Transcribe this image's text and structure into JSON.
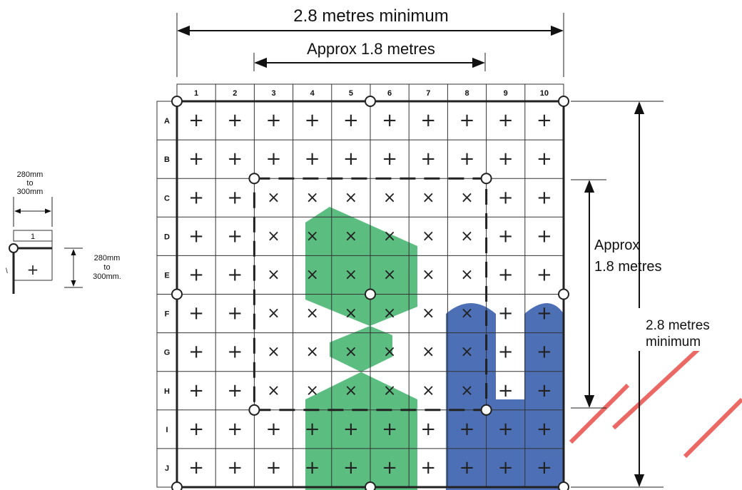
{
  "dimensions": {
    "top_outer": "2.8 metres minimum",
    "top_inner": "Approx 1.8 metres",
    "right_inner_line1": "Approx",
    "right_inner_line2": "1.8 metres",
    "right_outer_line1": "2.8 metres",
    "right_outer_line2": "minimum"
  },
  "inset": {
    "width_line1": "280mm",
    "width_line2": "to",
    "width_line3": "300mm",
    "height_line1": "280mm",
    "height_line2": "to",
    "height_line3": "300mm.",
    "column_label": "1",
    "cell_mark": "+",
    "row_mark": "A"
  },
  "grid": {
    "columns": [
      "1",
      "2",
      "3",
      "4",
      "5",
      "6",
      "7",
      "8",
      "9",
      "10"
    ],
    "rows": [
      "A",
      "B",
      "C",
      "D",
      "E",
      "F",
      "G",
      "H",
      "I",
      "J"
    ],
    "marks": [
      [
        "+",
        "+",
        "+",
        "+",
        "+",
        "+",
        "+",
        "+",
        "+",
        "+"
      ],
      [
        "+",
        "+",
        "+",
        "+",
        "+",
        "+",
        "+",
        "+",
        "+",
        "+"
      ],
      [
        "+",
        "+",
        "×",
        "×",
        "×",
        "×",
        "×",
        "×",
        "+",
        "+"
      ],
      [
        "+",
        "+",
        "×",
        "×",
        "×",
        "×",
        "×",
        "×",
        "+",
        "+"
      ],
      [
        "+",
        "+",
        "×",
        "×",
        "×",
        "×",
        "×",
        "×",
        "+",
        "+"
      ],
      [
        "+",
        "+",
        "×",
        "×",
        "×",
        "×",
        "×",
        "×",
        "+",
        "+"
      ],
      [
        "+",
        "+",
        "×",
        "×",
        "×",
        "×",
        "×",
        "×",
        "+",
        "+"
      ],
      [
        "+",
        "+",
        "×",
        "×",
        "×",
        "×",
        "×",
        "×",
        "+",
        "+"
      ],
      [
        "+",
        "+",
        "+",
        "+",
        "+",
        "+",
        "+",
        "+",
        "+",
        "+"
      ],
      [
        "+",
        "+",
        "+",
        "+",
        "+",
        "+",
        "+",
        "+",
        "+",
        "+"
      ]
    ]
  },
  "watermark": {
    "green": "#3fb26a",
    "blue": "#2e56a8",
    "red": "#e8504a"
  }
}
